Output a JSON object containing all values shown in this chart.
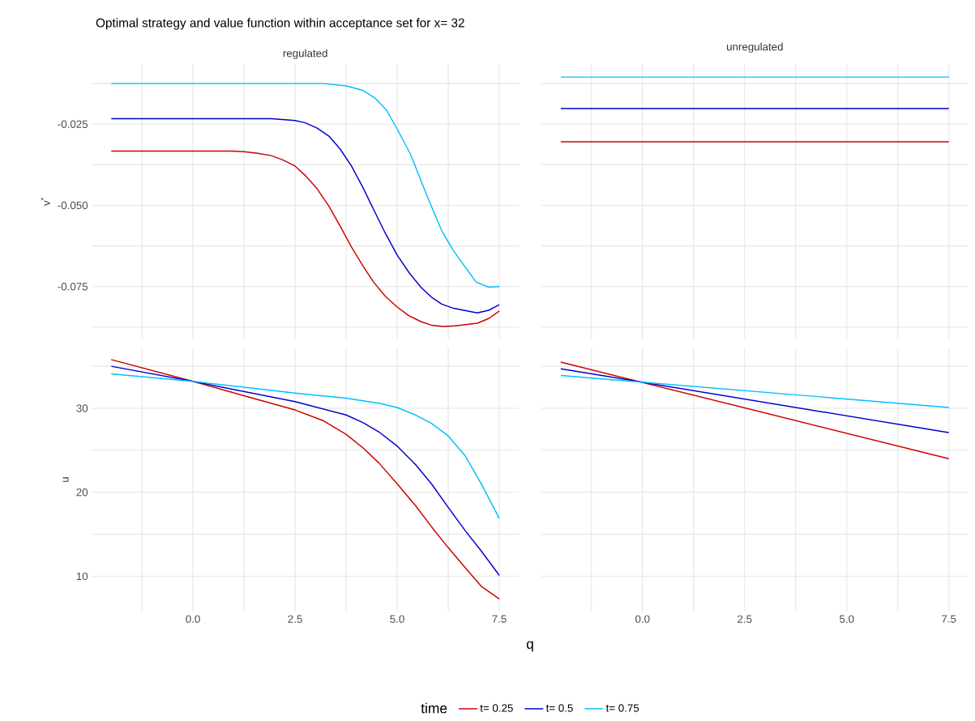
{
  "chart_data": [
    {
      "type": "line",
      "title": "Optimal strategy and value function within acceptance set for x= 32",
      "subtitle": "regulated",
      "ylabel": "v$^{*}$",
      "xlim": [
        -2.475,
        7.975
      ],
      "ylim": [
        -0.0912,
        -0.0064
      ],
      "grid": true,
      "tick_labels": "y",
      "xticks": [
        {
          "value": -1.25,
          "label": null
        },
        {
          "value": 0,
          "label": null
        },
        {
          "value": 1.25,
          "label": null
        },
        {
          "value": 2.5,
          "label": null
        },
        {
          "value": 3.75,
          "label": null
        },
        {
          "value": 5,
          "label": null
        },
        {
          "value": 6.25,
          "label": null
        },
        {
          "value": 7.5,
          "label": null
        }
      ],
      "yticks": [
        {
          "value": -0.0875,
          "label": null
        },
        {
          "value": -0.075,
          "label": "-0.075"
        },
        {
          "value": -0.0625,
          "label": null
        },
        {
          "value": -0.05,
          "label": "-0.050"
        },
        {
          "value": -0.0375,
          "label": null
        },
        {
          "value": -0.025,
          "label": "-0.025"
        },
        {
          "value": -0.0125,
          "label": null
        }
      ],
      "series": [
        {
          "color": "#cd0000",
          "x": [
            -2,
            0.95,
            1.25,
            1.59,
            1.92,
            2.2,
            2.5,
            2.75,
            3.04,
            3.33,
            3.59,
            3.88,
            4.16,
            4.42,
            4.71,
            5.0,
            5.29,
            5.58,
            5.84,
            6.13,
            6.41,
            6.96,
            7.25,
            7.5
          ],
          "values": [
            -0.0333,
            -0.0333,
            -0.0335,
            -0.034,
            -0.0347,
            -0.036,
            -0.0379,
            -0.0408,
            -0.0449,
            -0.0503,
            -0.0561,
            -0.0628,
            -0.0686,
            -0.0736,
            -0.078,
            -0.0813,
            -0.084,
            -0.0858,
            -0.0869,
            -0.0873,
            -0.0871,
            -0.0863,
            -0.0848,
            -0.0825
          ]
        },
        {
          "color": "#0000cd",
          "x": [
            -2,
            1.92,
            2.5,
            2.75,
            3.04,
            3.33,
            3.6,
            3.88,
            4.16,
            4.42,
            4.71,
            5.0,
            5.29,
            5.58,
            5.84,
            6.09,
            6.38,
            6.96,
            7.24,
            7.5
          ],
          "values": [
            -0.0233,
            -0.0233,
            -0.0239,
            -0.0246,
            -0.0262,
            -0.0287,
            -0.0326,
            -0.0379,
            -0.0445,
            -0.0512,
            -0.0586,
            -0.0653,
            -0.0707,
            -0.0752,
            -0.0783,
            -0.0804,
            -0.0817,
            -0.0831,
            -0.0823,
            -0.0806
          ]
        },
        {
          "color": "#00bfff",
          "x": [
            -2,
            3.2,
            3.75,
            4.16,
            4.45,
            4.74,
            5.0,
            5.32,
            5.77,
            6.09,
            6.38,
            6.93,
            7.24,
            7.5
          ],
          "values": [
            -0.0125,
            -0.0125,
            -0.0132,
            -0.0146,
            -0.0169,
            -0.0207,
            -0.0265,
            -0.0341,
            -0.0483,
            -0.0578,
            -0.064,
            -0.0736,
            -0.0752,
            -0.075
          ]
        }
      ]
    },
    {
      "type": "line",
      "title": "unregulated",
      "xlim": [
        -2.475,
        7.975
      ],
      "ylim": [
        -0.0912,
        -0.0064
      ],
      "grid": true,
      "tick_labels": false,
      "xticks": [
        {
          "value": -1.25,
          "label": null
        },
        {
          "value": 0,
          "label": null
        },
        {
          "value": 1.25,
          "label": null
        },
        {
          "value": 2.5,
          "label": null
        },
        {
          "value": 3.75,
          "label": null
        },
        {
          "value": 5,
          "label": null
        },
        {
          "value": 6.25,
          "label": null
        },
        {
          "value": 7.5,
          "label": null
        }
      ],
      "yticks": [
        {
          "value": -0.0875,
          "label": null
        },
        {
          "value": -0.075,
          "label": null
        },
        {
          "value": -0.0625,
          "label": null
        },
        {
          "value": -0.05,
          "label": null
        },
        {
          "value": -0.0375,
          "label": null
        },
        {
          "value": -0.025,
          "label": null
        },
        {
          "value": -0.0125,
          "label": null
        }
      ],
      "series": [
        {
          "color": "#cd0000",
          "x": [
            -2,
            7.5
          ],
          "values": [
            -0.0304,
            -0.0304
          ]
        },
        {
          "color": "#0000cd",
          "x": [
            -2,
            7.5
          ],
          "values": [
            -0.0202,
            -0.0202
          ]
        },
        {
          "color": "#00bfff",
          "x": [
            -2,
            7.5
          ],
          "values": [
            -0.0105,
            -0.0105
          ]
        }
      ]
    },
    {
      "type": "line",
      "ylabel": "u",
      "xlabel": "q",
      "legend_title": "time",
      "legend": "bottom",
      "xlim": [
        -2.475,
        7.975
      ],
      "ylim": [
        5.82,
        37.2
      ],
      "grid": true,
      "xticks": [
        {
          "value": -1.25,
          "label": null
        },
        {
          "value": 0,
          "label": "0.0"
        },
        {
          "value": 1.25,
          "label": null
        },
        {
          "value": 2.5,
          "label": "2.5"
        },
        {
          "value": 3.75,
          "label": null
        },
        {
          "value": 5,
          "label": "5.0"
        },
        {
          "value": 6.25,
          "label": null
        },
        {
          "value": 7.5,
          "label": "7.5"
        }
      ],
      "yticks": [
        10,
        {
          "value": 15,
          "label": null
        },
        20,
        {
          "value": 25,
          "label": null
        },
        30,
        {
          "value": 35,
          "label": null
        }
      ],
      "series": [
        {
          "name": "t= 0.25",
          "color": "#cd0000",
          "x": [
            -2,
            0,
            1.25,
            2.5,
            3.2,
            3.75,
            4.16,
            4.55,
            5,
            5.45,
            5.84,
            6.25,
            6.67,
            7.06,
            7.5
          ],
          "values": [
            35.8,
            33.2,
            31.5,
            29.8,
            28.5,
            26.9,
            25.3,
            23.5,
            21.0,
            18.4,
            15.9,
            13.4,
            11.0,
            8.8,
            7.3
          ]
        },
        {
          "name": "t= 0.5",
          "color": "#0000cd",
          "x": [
            -2,
            0,
            1.25,
            2.5,
            3.75,
            4.16,
            4.55,
            5,
            5.45,
            5.84,
            6.25,
            6.67,
            7.06,
            7.5
          ],
          "values": [
            35.0,
            33.2,
            32.0,
            30.8,
            29.2,
            28.3,
            27.2,
            25.5,
            23.3,
            21.0,
            18.2,
            15.4,
            13.0,
            10.1
          ]
        },
        {
          "name": "t= 0.75",
          "color": "#00bfff",
          "x": [
            -2,
            0,
            1.25,
            2.5,
            3.75,
            4.55,
            5,
            5.45,
            5.84,
            6.25,
            6.67,
            7.06,
            7.5
          ],
          "values": [
            34.1,
            33.2,
            32.5,
            31.8,
            31.2,
            30.6,
            30.1,
            29.2,
            28.2,
            26.7,
            24.3,
            21.0,
            16.9
          ]
        }
      ]
    },
    {
      "type": "line",
      "xlim": [
        -2.475,
        7.975
      ],
      "ylim": [
        5.82,
        37.2
      ],
      "grid": true,
      "tick_labels": "x",
      "xticks": [
        {
          "value": -1.25,
          "label": null
        },
        {
          "value": 0,
          "label": "0.0"
        },
        {
          "value": 1.25,
          "label": null
        },
        {
          "value": 2.5,
          "label": "2.5"
        },
        {
          "value": 3.75,
          "label": null
        },
        {
          "value": 5,
          "label": "5.0"
        },
        {
          "value": 6.25,
          "label": null
        },
        {
          "value": 7.5,
          "label": "7.5"
        }
      ],
      "yticks": [
        10,
        {
          "value": 15,
          "label": null
        },
        20,
        {
          "value": 25,
          "label": null
        },
        30,
        {
          "value": 35,
          "label": null
        }
      ],
      "series": [
        {
          "color": "#cd0000",
          "x": [
            -2,
            7.5
          ],
          "values": [
            35.5,
            24.0
          ]
        },
        {
          "color": "#0000cd",
          "x": [
            -2,
            7.5
          ],
          "values": [
            34.7,
            27.1
          ]
        },
        {
          "color": "#00bfff",
          "x": [
            -2,
            7.5
          ],
          "values": [
            33.9,
            30.1
          ]
        }
      ]
    }
  ]
}
